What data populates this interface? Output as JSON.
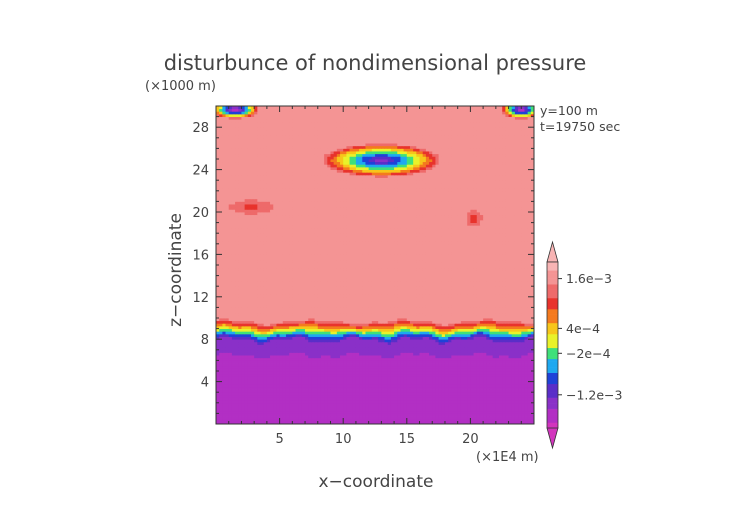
{
  "chart_data": {
    "type": "heatmap",
    "title": "disturbunce of nondimensional pressure",
    "z_unit_label": "(×1000 m)",
    "x_unit_label": "(×1E4 m)",
    "xlabel": "x−coordinate",
    "ylabel": "z−coordinate",
    "annotations": [
      "y=100 m",
      "t=19750 sec"
    ],
    "xlim": [
      0,
      25
    ],
    "ylim": [
      0,
      30
    ],
    "x_ticks": [
      5,
      10,
      15,
      20
    ],
    "x_tick_labels": [
      "5",
      "10",
      "15",
      "20"
    ],
    "y_ticks": [
      4,
      8,
      12,
      16,
      20,
      24,
      28
    ],
    "y_tick_labels": [
      "4",
      "8",
      "12",
      "16",
      "20",
      "24",
      "28"
    ],
    "colorbar": {
      "labels": [
        {
          "value": 0.0016,
          "text": "1.6e−3"
        },
        {
          "value": 0.0004,
          "text": "4e−4"
        },
        {
          "value": -0.0002,
          "text": "−2e−4"
        },
        {
          "value": -0.0012,
          "text": "−1.2e−3"
        }
      ],
      "range": [
        -0.002,
        0.002
      ],
      "legend_position": "right"
    },
    "features": {
      "upper_background_value": 0.0017,
      "lower_layer": {
        "z_top": 7.8,
        "value": -0.0018
      },
      "transition_band": {
        "z_bottom": 7.8,
        "z_top": 9.8
      },
      "blobs": [
        {
          "x": 13.0,
          "z": 24.9,
          "rx": 4.8,
          "rz": 1.6,
          "min_value": -0.0015
        },
        {
          "x": 2.8,
          "z": 20.5,
          "rx": 2.4,
          "rz": 0.9,
          "min_value": 0.001
        },
        {
          "x": 20.3,
          "z": 19.4,
          "rx": 0.8,
          "rz": 1.0,
          "min_value": 0.0009
        },
        {
          "x": 1.5,
          "z": 29.7,
          "rx": 1.9,
          "rz": 0.9,
          "min_value": -0.002
        },
        {
          "x": 24.0,
          "z": 29.7,
          "rx": 1.6,
          "rz": 0.9,
          "min_value": -0.002
        }
      ]
    }
  }
}
